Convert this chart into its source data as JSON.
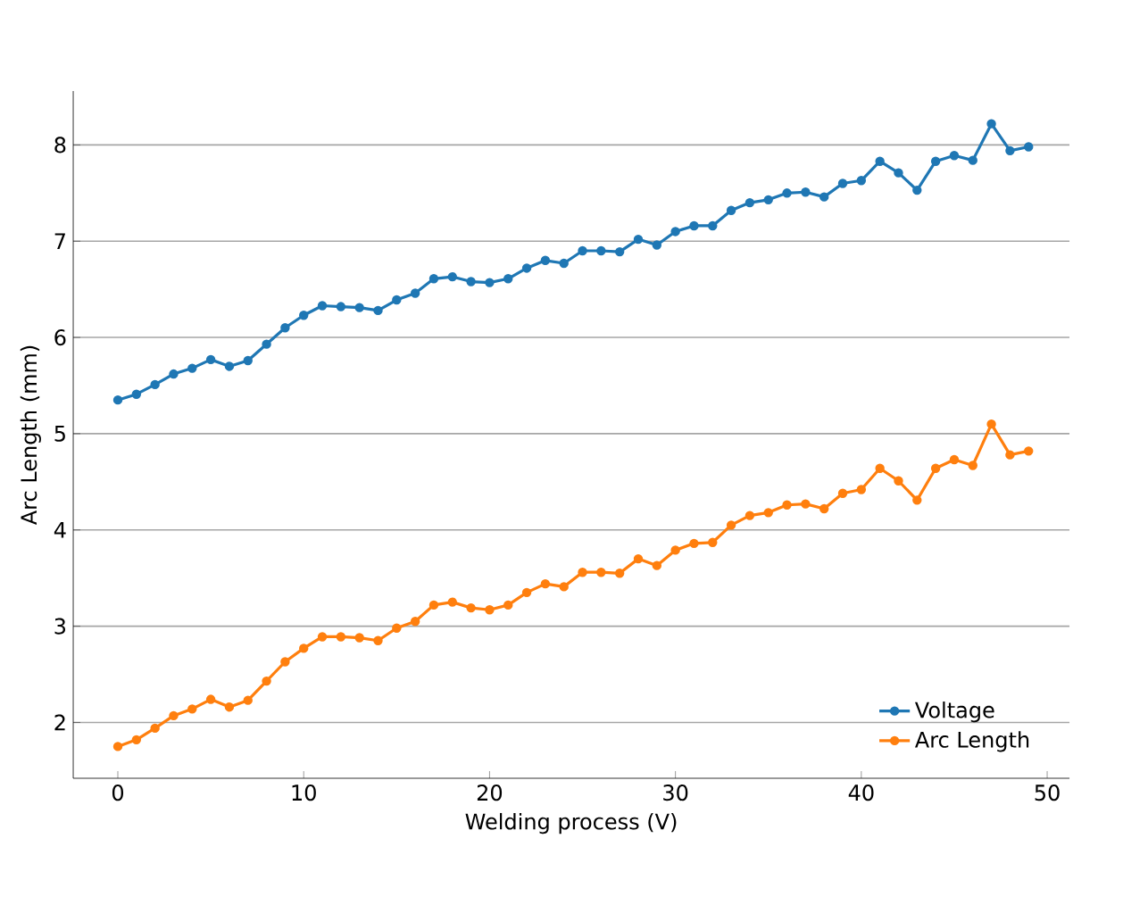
{
  "chart_data": {
    "type": "line",
    "xlabel": "Welding process (V)",
    "ylabel": "Arc Length (mm)",
    "x": [
      0,
      1,
      2,
      3,
      4,
      5,
      6,
      7,
      8,
      9,
      10,
      11,
      12,
      13,
      14,
      15,
      16,
      17,
      18,
      19,
      20,
      21,
      22,
      23,
      24,
      25,
      26,
      27,
      28,
      29,
      30,
      31,
      32,
      33,
      34,
      35,
      36,
      37,
      38,
      39,
      40,
      41,
      42,
      43,
      44,
      45,
      46,
      47,
      48,
      49
    ],
    "series": [
      {
        "name": "Voltage",
        "color": "#1f77b4",
        "values": [
          5.35,
          5.41,
          5.51,
          5.62,
          5.68,
          5.77,
          5.7,
          5.76,
          5.93,
          6.1,
          6.23,
          6.33,
          6.32,
          6.31,
          6.28,
          6.39,
          6.46,
          6.61,
          6.63,
          6.58,
          6.57,
          6.61,
          6.72,
          6.8,
          6.77,
          6.9,
          6.9,
          6.89,
          7.02,
          6.96,
          7.1,
          7.16,
          7.16,
          7.32,
          7.4,
          7.43,
          7.5,
          7.51,
          7.46,
          7.6,
          7.63,
          7.83,
          7.71,
          7.53,
          7.83,
          7.89,
          7.84,
          8.22,
          7.94,
          7.98
        ]
      },
      {
        "name": "Arc Length",
        "color": "#ff7f0e",
        "values": [
          1.75,
          1.82,
          1.94,
          2.07,
          2.14,
          2.24,
          2.16,
          2.23,
          2.43,
          2.63,
          2.77,
          2.89,
          2.89,
          2.88,
          2.85,
          2.98,
          3.05,
          3.22,
          3.25,
          3.19,
          3.17,
          3.22,
          3.35,
          3.44,
          3.41,
          3.56,
          3.56,
          3.55,
          3.7,
          3.63,
          3.79,
          3.86,
          3.87,
          4.05,
          4.15,
          4.18,
          4.26,
          4.27,
          4.22,
          4.38,
          4.42,
          4.64,
          4.51,
          4.31,
          4.64,
          4.73,
          4.67,
          5.1,
          4.78,
          4.82
        ]
      }
    ],
    "xlim": [
      -2.4,
      51.2
    ],
    "ylim": [
      1.42,
      8.56
    ],
    "xticks": [
      0,
      10,
      20,
      30,
      40,
      50
    ],
    "yticks": [
      2,
      3,
      4,
      5,
      6,
      7,
      8
    ],
    "grid": "y",
    "legend": "bottom right",
    "marker": "circle",
    "line_style": "solid"
  }
}
